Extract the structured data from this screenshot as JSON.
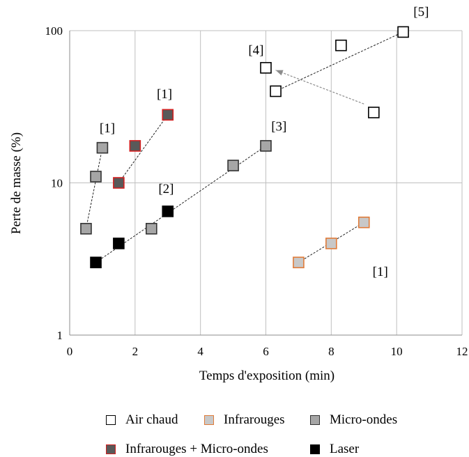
{
  "chart_data": {
    "type": "scatter",
    "xlabel": "Temps d'exposition (min)",
    "ylabel": "Perte de masse (%)",
    "xlim": [
      0,
      12
    ],
    "ylim": [
      1,
      100
    ],
    "yscale": "log",
    "x_ticks": [
      0,
      2,
      4,
      6,
      8,
      10,
      12
    ],
    "y_ticks": [
      1,
      10,
      100
    ],
    "grid": "vertical and horizontal major gridlines",
    "legend_position": "bottom",
    "series": [
      {
        "name": "Air chaud",
        "fill": "#ffffff",
        "stroke": "#000000",
        "points": [
          [
            6.0,
            57
          ],
          [
            6.3,
            40
          ],
          [
            8.3,
            80
          ],
          [
            9.3,
            29
          ],
          [
            10.2,
            98
          ]
        ]
      },
      {
        "name": "Infrarouges",
        "fill": "#c8c8c8",
        "stroke": "#e07b39",
        "points": [
          [
            7.0,
            3.0
          ],
          [
            8.0,
            4.0
          ],
          [
            9.0,
            5.5
          ]
        ]
      },
      {
        "name": "Micro-ondes",
        "fill": "#a6a6a6",
        "stroke": "#333333",
        "points": [
          [
            0.5,
            5.0
          ],
          [
            0.8,
            11
          ],
          [
            1.0,
            17
          ],
          [
            2.5,
            5.0
          ],
          [
            5.0,
            13
          ],
          [
            6.0,
            17.5
          ]
        ]
      },
      {
        "name": "Infrarouges + Micro-ondes",
        "fill": "#595959",
        "stroke": "#d32020",
        "points": [
          [
            1.5,
            10
          ],
          [
            2.0,
            17.5
          ],
          [
            3.0,
            28
          ]
        ]
      },
      {
        "name": "Laser",
        "fill": "#000000",
        "stroke": "#000000",
        "points": [
          [
            0.8,
            3.0
          ],
          [
            1.5,
            4.0
          ],
          [
            3.0,
            6.5
          ]
        ]
      }
    ],
    "trend_lines": [
      {
        "from": [
          0.5,
          5.0
        ],
        "to": [
          1.0,
          17
        ]
      },
      {
        "from": [
          1.5,
          10
        ],
        "to": [
          3.0,
          28
        ]
      },
      {
        "from": [
          0.8,
          3.0
        ],
        "to": [
          6.0,
          17.5
        ]
      },
      {
        "from": [
          7.0,
          3.0
        ],
        "to": [
          9.0,
          5.5
        ]
      },
      {
        "from": [
          6.3,
          40
        ],
        "to": [
          10.2,
          98
        ]
      }
    ],
    "arrows": [
      {
        "from": [
          9.0,
          33
        ],
        "to": [
          6.3,
          55
        ]
      }
    ],
    "annotations": [
      {
        "text": "[1]",
        "x": 1.15,
        "y": 21.5
      },
      {
        "text": "[1]",
        "x": 2.9,
        "y": 36
      },
      {
        "text": "[2]",
        "x": 2.95,
        "y": 8.6
      },
      {
        "text": "[3]",
        "x": 6.4,
        "y": 22
      },
      {
        "text": "[4]",
        "x": 5.7,
        "y": 70
      },
      {
        "text": "[5]",
        "x": 10.75,
        "y": 125
      },
      {
        "text": "[1]",
        "x": 9.5,
        "y": 2.45
      }
    ]
  }
}
